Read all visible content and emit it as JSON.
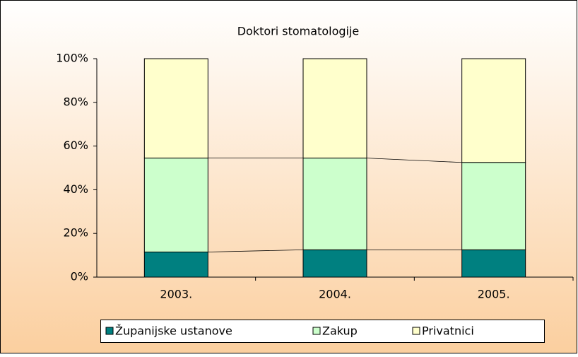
{
  "chart_data": {
    "type": "stacked_bar",
    "title": "Doktori stomatologije",
    "categories": [
      "2003.",
      "2004.",
      "2005."
    ],
    "series": [
      {
        "name": "Županijske ustanove",
        "color": "#008080",
        "values": [
          11.5,
          12.5,
          12.5
        ]
      },
      {
        "name": "Zakup",
        "color": "#ccffcc",
        "values": [
          43,
          42,
          40
        ]
      },
      {
        "name": "Privatnici",
        "color": "#ffffcc",
        "values": [
          45.5,
          45.5,
          47.5
        ]
      }
    ],
    "ylim": [
      0,
      100
    ],
    "yticks": [
      {
        "value": 0,
        "label": "0%"
      },
      {
        "value": 20,
        "label": "20%"
      },
      {
        "value": 40,
        "label": "40%"
      },
      {
        "value": 60,
        "label": "60%"
      },
      {
        "value": 80,
        "label": "80%"
      },
      {
        "value": 100,
        "label": "100%"
      }
    ],
    "legend": "bottom"
  }
}
